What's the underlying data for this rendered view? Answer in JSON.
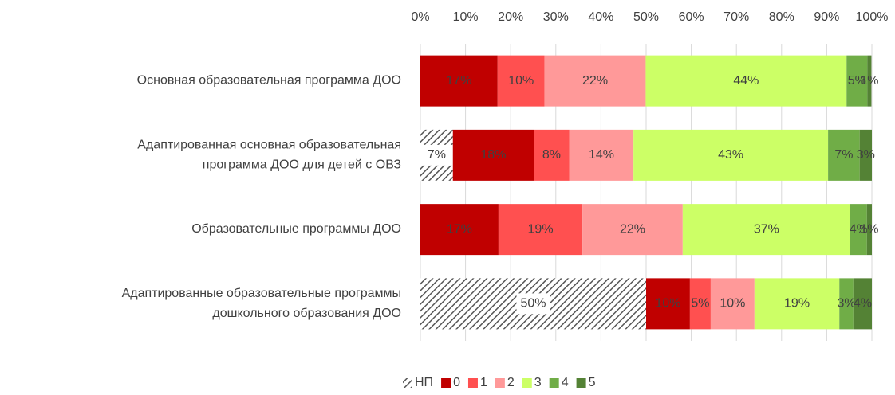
{
  "chart_data": {
    "type": "stacked_barh",
    "categories": [
      [
        "Основная образовательная программа ДОО"
      ],
      [
        "Адаптированная основная образовательная",
        "программа ДОО для детей с ОВЗ"
      ],
      [
        "Образовательные программы ДОО"
      ],
      [
        "Адаптированные образовательные программы",
        "дошкольного образования ДОО"
      ]
    ],
    "series": [
      {
        "name": "НП",
        "color": "hatch",
        "values": [
          null,
          7.2,
          null,
          50
        ],
        "value_labels": [
          null,
          "7%",
          null,
          "50%"
        ]
      },
      {
        "name": "0",
        "color": "#c00000",
        "values": [
          17.1,
          17.9,
          17.3,
          9.7
        ],
        "value_labels": [
          "17%",
          "18%",
          "17%",
          "10%"
        ]
      },
      {
        "name": "1",
        "color": "#ff5050",
        "values": [
          10.4,
          7.9,
          18.6,
          4.6
        ],
        "value_labels": [
          "10%",
          "8%",
          "19%",
          "5%"
        ]
      },
      {
        "name": "2",
        "color": "#ff9999",
        "values": [
          22.4,
          14.2,
          22.2,
          9.7
        ],
        "value_labels": [
          "22%",
          "14%",
          "22%",
          "10%"
        ]
      },
      {
        "name": "3",
        "color": "#ccff66",
        "values": [
          44.5,
          43.1,
          37.1,
          18.8
        ],
        "value_labels": [
          "44%",
          "43%",
          "37%",
          "19%"
        ]
      },
      {
        "name": "4",
        "color": "#70ad47",
        "values": [
          4.6,
          7,
          3.7,
          3.1
        ],
        "value_labels": [
          "5%",
          "7%",
          "4%",
          "3%"
        ]
      },
      {
        "name": "5",
        "color": "#548235",
        "values": [
          0.9,
          2.7,
          1.1,
          4.1
        ],
        "value_labels": [
          "1%",
          "3%",
          "1%",
          "4%"
        ]
      }
    ],
    "xlim": [
      0,
      100
    ],
    "xticks": [
      {
        "value": 0,
        "label": "0%"
      },
      {
        "value": 10,
        "label": "10%"
      },
      {
        "value": 20,
        "label": "20%"
      },
      {
        "value": 30,
        "label": "30%"
      },
      {
        "value": 40,
        "label": "40%"
      },
      {
        "value": 50,
        "label": "50%"
      },
      {
        "value": 60,
        "label": "60%"
      },
      {
        "value": 70,
        "label": "70%"
      },
      {
        "value": 80,
        "label": "80%"
      },
      {
        "value": 90,
        "label": "90%"
      },
      {
        "value": 100,
        "label": "100%"
      }
    ],
    "grid": true,
    "legend": "bottom"
  }
}
